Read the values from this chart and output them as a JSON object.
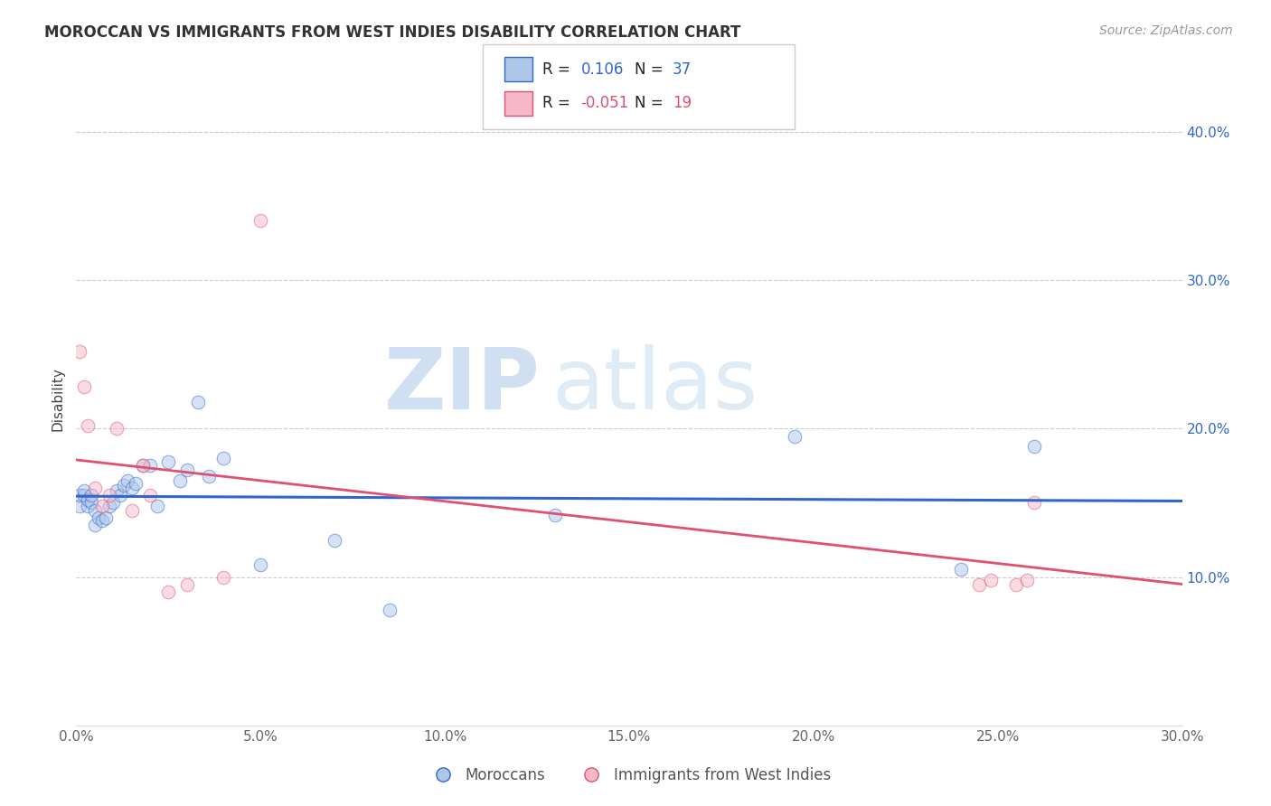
{
  "title": "MOROCCAN VS IMMIGRANTS FROM WEST INDIES DISABILITY CORRELATION CHART",
  "source": "Source: ZipAtlas.com",
  "ylabel": "Disability",
  "xlim": [
    0,
    0.3
  ],
  "ylim": [
    0.0,
    0.44
  ],
  "xticks": [
    0.0,
    0.05,
    0.1,
    0.15,
    0.2,
    0.25,
    0.3
  ],
  "yticks": [
    0.1,
    0.2,
    0.3,
    0.4
  ],
  "blue_color": "#aec6e8",
  "blue_line_color": "#3366cc",
  "pink_color": "#f4b8c8",
  "pink_line_color": "#e05070",
  "blue_x": [
    0.001,
    0.001,
    0.002,
    0.002,
    0.003,
    0.003,
    0.004,
    0.004,
    0.005,
    0.005,
    0.006,
    0.007,
    0.008,
    0.009,
    0.01,
    0.011,
    0.012,
    0.013,
    0.014,
    0.015,
    0.016,
    0.018,
    0.02,
    0.022,
    0.025,
    0.028,
    0.03,
    0.033,
    0.036,
    0.04,
    0.05,
    0.07,
    0.085,
    0.13,
    0.195,
    0.24,
    0.26
  ],
  "blue_y": [
    0.148,
    0.155,
    0.155,
    0.158,
    0.148,
    0.152,
    0.15,
    0.155,
    0.135,
    0.145,
    0.14,
    0.138,
    0.14,
    0.148,
    0.15,
    0.158,
    0.155,
    0.162,
    0.165,
    0.16,
    0.163,
    0.175,
    0.175,
    0.148,
    0.178,
    0.165,
    0.172,
    0.218,
    0.168,
    0.18,
    0.108,
    0.125,
    0.078,
    0.142,
    0.195,
    0.105,
    0.188
  ],
  "pink_x": [
    0.001,
    0.002,
    0.003,
    0.005,
    0.007,
    0.009,
    0.011,
    0.015,
    0.018,
    0.02,
    0.025,
    0.03,
    0.04,
    0.05,
    0.245,
    0.248,
    0.255,
    0.258,
    0.26
  ],
  "pink_y": [
    0.252,
    0.228,
    0.202,
    0.16,
    0.148,
    0.155,
    0.2,
    0.145,
    0.175,
    0.155,
    0.09,
    0.095,
    0.1,
    0.34,
    0.095,
    0.098,
    0.095,
    0.098,
    0.15
  ],
  "background_color": "#ffffff",
  "watermark_zip": "ZIP",
  "watermark_atlas": "atlas",
  "marker_size": 110,
  "marker_alpha": 0.5,
  "bottom_legend_blue": "Moroccans",
  "bottom_legend_pink": "Immigrants from West Indies"
}
